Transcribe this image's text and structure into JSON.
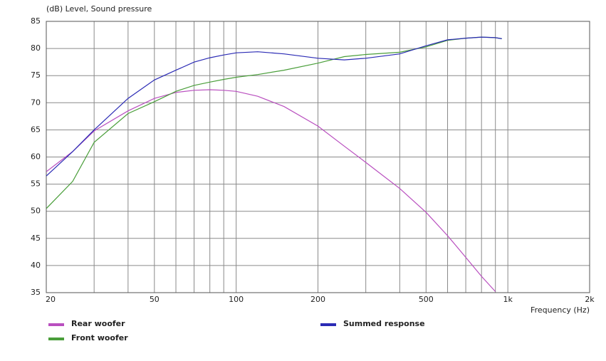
{
  "chart_data": {
    "type": "line",
    "y_label": "(dB)  Level, Sound pressure",
    "x_label": "Frequency  (Hz)",
    "x_scale": "log",
    "xlim": [
      20,
      2000
    ],
    "ylim": [
      35,
      85
    ],
    "xticks": [
      20,
      50,
      100,
      200,
      500,
      {
        "value": 1000,
        "label": "1k"
      },
      {
        "value": 2000,
        "label": "2k"
      }
    ],
    "x_minor_ticks": [
      30,
      40,
      60,
      70,
      80,
      90,
      300,
      400,
      600,
      700,
      800,
      900
    ],
    "yticks": [
      35,
      40,
      45,
      50,
      55,
      60,
      65,
      70,
      75,
      80,
      85
    ],
    "grid": true,
    "x": [
      20,
      25,
      30,
      40,
      50,
      60,
      70,
      80,
      90,
      100,
      120,
      150,
      200,
      250,
      300,
      400,
      500,
      600,
      700,
      800,
      900,
      950
    ],
    "series": [
      {
        "name": "Rear woofer",
        "color": "#b94fbf",
        "values": [
          57.3,
          61,
          64.8,
          68.5,
          70.8,
          71.9,
          72.3,
          72.4,
          72.3,
          72.1,
          71.2,
          69.3,
          65.7,
          62,
          59,
          54.2,
          49.8,
          45.5,
          41.5,
          38,
          35.2,
          null
        ]
      },
      {
        "name": "Front woofer",
        "color": "#4a9e3a",
        "values": [
          50.5,
          55.5,
          62.7,
          68,
          70.2,
          72.1,
          73.2,
          73.8,
          74.3,
          74.7,
          75.2,
          76,
          77.3,
          78.5,
          78.9,
          79.3,
          80.3,
          81.5,
          81.9,
          82.1,
          82,
          81.8
        ]
      },
      {
        "name": "Summed response",
        "color": "#2b2bb5",
        "values": [
          56.5,
          61,
          65,
          70.8,
          74.2,
          76,
          77.5,
          78.3,
          78.8,
          79.2,
          79.4,
          79,
          78.2,
          77.9,
          78.2,
          79,
          80.5,
          81.6,
          81.9,
          82.1,
          82,
          81.8
        ]
      }
    ]
  }
}
